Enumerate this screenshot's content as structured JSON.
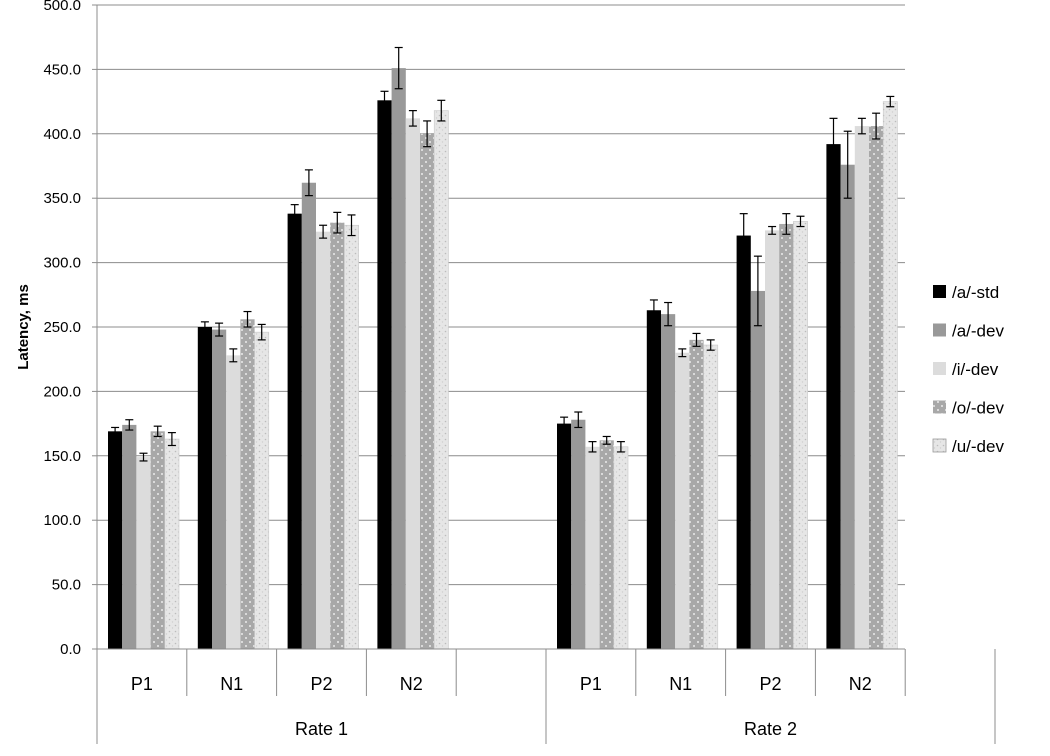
{
  "chart_data": {
    "type": "bar",
    "ylabel": "Latency, ms",
    "ylim": [
      0,
      500
    ],
    "y_tick_step": 50,
    "y_tick_labels": [
      "0.0",
      "50.0",
      "100.0",
      "150.0",
      "200.0",
      "250.0",
      "300.0",
      "350.0",
      "400.0",
      "450.0",
      "500.0"
    ],
    "grid": true,
    "legend_position": "right",
    "groups": [
      "Rate 1",
      "Rate 2"
    ],
    "components": [
      "P1",
      "N1",
      "P2",
      "N2"
    ],
    "categories": [
      "P1",
      "N1",
      "P2",
      "N2",
      "P1",
      "N1",
      "P2",
      "N2"
    ],
    "series": [
      {
        "name": "/a/-std",
        "color": "#000000",
        "pattern": "solid",
        "values": [
          169,
          250,
          338,
          426,
          175,
          263,
          321,
          392
        ],
        "errors": [
          3,
          4,
          7,
          7,
          5,
          8,
          17,
          20
        ]
      },
      {
        "name": "/a/-dev",
        "color": "#999999",
        "pattern": "solid",
        "values": [
          174,
          248,
          362,
          451,
          178,
          260,
          278,
          376
        ],
        "errors": [
          4,
          5,
          10,
          16,
          6,
          9,
          27,
          26
        ]
      },
      {
        "name": "/i/-dev",
        "color": "#dcdcdc",
        "pattern": "solid",
        "values": [
          149,
          228,
          324,
          412,
          157,
          230,
          325,
          406
        ],
        "errors": [
          3,
          5,
          5,
          6,
          4,
          3,
          3,
          6
        ]
      },
      {
        "name": "/o/-dev",
        "color": "#a8a8a8",
        "pattern": "dotted",
        "values": [
          169,
          256,
          331,
          400,
          162,
          240,
          330,
          406
        ],
        "errors": [
          4,
          6,
          8,
          10,
          3,
          5,
          8,
          10
        ]
      },
      {
        "name": "/u/-dev",
        "color": "#e4e4e4",
        "pattern": "speckled",
        "values": [
          163,
          246,
          329,
          418,
          157,
          236,
          332,
          425
        ],
        "errors": [
          5,
          6,
          8,
          8,
          4,
          4,
          4,
          4
        ]
      }
    ]
  }
}
